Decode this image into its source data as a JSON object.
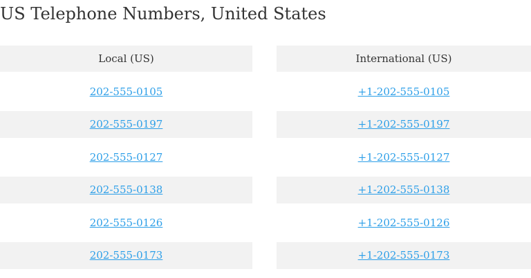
{
  "title": "US Telephone Numbers, United States",
  "tables": [
    {
      "header": "Local (US)",
      "rows": [
        "202-555-0105",
        "202-555-0197",
        "202-555-0127",
        "202-555-0138",
        "202-555-0126",
        "202-555-0173"
      ]
    },
    {
      "header": "International (US)",
      "rows": [
        "+1-202-555-0105",
        "+1-202-555-0197",
        "+1-202-555-0127",
        "+1-202-555-0138",
        "+1-202-555-0126",
        "+1-202-555-0173"
      ]
    }
  ]
}
